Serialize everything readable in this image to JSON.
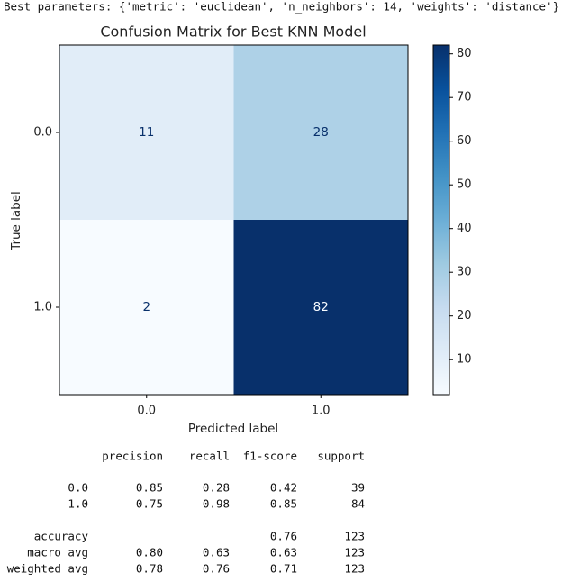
{
  "output_line": "Best parameters: {'metric': 'euclidean', 'n_neighbors': 14, 'weights': 'distance'}",
  "chart_data": {
    "type": "heatmap",
    "title": "Confusion Matrix for Best KNN Model",
    "x_label": "Predicted label",
    "y_label": "True label",
    "x_categories": [
      "0.0",
      "1.0"
    ],
    "y_categories": [
      "0.0",
      "1.0"
    ],
    "values": [
      [
        11,
        28
      ],
      [
        2,
        82
      ]
    ],
    "colormap": "Blues",
    "colorbar_lim": [
      2,
      82
    ],
    "colorbar_ticks": [
      10,
      20,
      30,
      40,
      50,
      60,
      70,
      80
    ]
  },
  "report": {
    "header": [
      "precision",
      "recall",
      "f1-score",
      "support"
    ],
    "class_rows": [
      [
        "0.0",
        "0.85",
        "0.28",
        "0.42",
        "39"
      ],
      [
        "1.0",
        "0.75",
        "0.98",
        "0.85",
        "84"
      ]
    ],
    "summary_rows": [
      [
        "accuracy",
        null,
        null,
        "0.76",
        "123"
      ],
      [
        "macro avg",
        "0.80",
        "0.63",
        "0.63",
        "123"
      ],
      [
        "weighted avg",
        "0.78",
        "0.76",
        "0.71",
        "123"
      ]
    ]
  }
}
